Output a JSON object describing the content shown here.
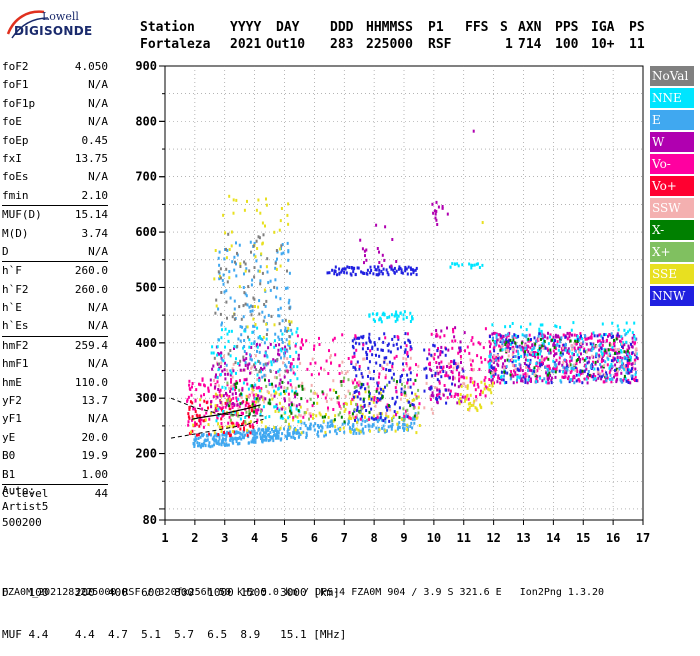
{
  "logo": {
    "line1": "Lowell",
    "line2": "DIGISONDE"
  },
  "header": {
    "labels": [
      "Station",
      "YYYY",
      "DAY",
      "DDD",
      "HHMMSS",
      "P1",
      "FFS",
      "S",
      "AXN",
      "PPS",
      "IGA",
      "PS"
    ],
    "values": [
      "Fortaleza",
      "2021",
      "Out10",
      "283",
      "225000",
      "RSF",
      "",
      "1",
      "714",
      "100",
      "10+",
      "11"
    ]
  },
  "params": [
    [
      {
        "label": "foF2",
        "value": "4.050"
      },
      {
        "label": "foF1",
        "value": "N/A"
      },
      {
        "label": "foF1p",
        "value": "N/A"
      },
      {
        "label": "foE",
        "value": "N/A"
      },
      {
        "label": "foEp",
        "value": "0.45"
      },
      {
        "label": "fxI",
        "value": "13.75"
      },
      {
        "label": "foEs",
        "value": "N/A"
      },
      {
        "label": "fmin",
        "value": "2.10"
      }
    ],
    [
      {
        "label": "MUF(D)",
        "value": "15.14"
      },
      {
        "label": "M(D)",
        "value": "3.74"
      },
      {
        "label": "D",
        "value": "N/A"
      }
    ],
    [
      {
        "label": "h`F",
        "value": "260.0"
      },
      {
        "label": "h`F2",
        "value": "260.0"
      },
      {
        "label": "h`E",
        "value": "N/A"
      },
      {
        "label": "h`Es",
        "value": "N/A"
      }
    ],
    [
      {
        "label": "hmF2",
        "value": "259.4"
      },
      {
        "label": "hmF1",
        "value": "N/A"
      },
      {
        "label": "hmE",
        "value": "110.0"
      },
      {
        "label": "yF2",
        "value": "13.7"
      },
      {
        "label": "yF1",
        "value": "N/A"
      },
      {
        "label": "yE",
        "value": "20.0"
      },
      {
        "label": "B0",
        "value": "19.9"
      },
      {
        "label": "B1",
        "value": "1.00"
      }
    ],
    [
      {
        "label": "C-level",
        "value": "44"
      }
    ]
  ],
  "auto": [
    "Auto:",
    "Artist5",
    "500200"
  ],
  "legend": [
    {
      "label": "NoVal",
      "color": "#808080"
    },
    {
      "label": "NNE",
      "color": "#00e5ff"
    },
    {
      "label": "E",
      "color": "#40a8f0"
    },
    {
      "label": "W",
      "color": "#b000b0"
    },
    {
      "label": "Vo-",
      "color": "#ff00a0"
    },
    {
      "label": "Vo+",
      "color": "#ff0030"
    },
    {
      "label": "SSW",
      "color": "#f4b0b0"
    },
    {
      "label": "X-",
      "color": "#008000"
    },
    {
      "label": "X+",
      "color": "#80c060"
    },
    {
      "label": "SSE",
      "color": "#e8e020"
    },
    {
      "label": "NNW",
      "color": "#2020e0"
    }
  ],
  "chart_data": {
    "type": "scatter",
    "title": "",
    "xlabel": "",
    "ylabel": "",
    "xlim": [
      1,
      17
    ],
    "ylim": [
      80,
      900
    ],
    "xticks": [
      1,
      2,
      3,
      4,
      5,
      6,
      7,
      8,
      9,
      10,
      11,
      12,
      13,
      14,
      15,
      16,
      17
    ],
    "yticks": [
      80,
      200,
      300,
      400,
      500,
      600,
      700,
      800,
      900
    ],
    "grid": true,
    "legend_position": "right",
    "clusters": [
      {
        "color": "#40a8f0",
        "fmin": 1.9,
        "fmax": 5.4,
        "hmin": 212,
        "hmax": 236,
        "h_slope": 5,
        "count": 260,
        "note": "E"
      },
      {
        "color": "#40a8f0",
        "fmin": 5.4,
        "fmax": 9.4,
        "hmin": 230,
        "hmax": 260,
        "h_slope": 4,
        "count": 160,
        "note": "E"
      },
      {
        "color": "#ff00a0",
        "fmin": 1.7,
        "fmax": 4.2,
        "hmin": 250,
        "hmax": 340,
        "count": 140,
        "note": "Vo-"
      },
      {
        "color": "#ff0030",
        "fmin": 1.7,
        "fmax": 4.0,
        "hmin": 235,
        "hmax": 300,
        "count": 70,
        "note": "Vo+"
      },
      {
        "color": "#e8e020",
        "fmin": 1.8,
        "fmax": 9.5,
        "hmin": 240,
        "hmax": 320,
        "count": 160,
        "note": "SSE"
      },
      {
        "color": "#f4b0b0",
        "fmin": 2.5,
        "fmax": 11.5,
        "hmin": 270,
        "hmax": 380,
        "count": 180,
        "note": "SSW"
      },
      {
        "color": "#b000b0",
        "fmin": 2.5,
        "fmax": 5.5,
        "hmin": 280,
        "hmax": 400,
        "count": 120,
        "note": "W"
      },
      {
        "color": "#00e5ff",
        "fmin": 2.5,
        "fmax": 5.5,
        "hmin": 260,
        "hmax": 430,
        "count": 110,
        "note": "NNE"
      },
      {
        "color": "#40a8f0",
        "fmin": 2.7,
        "fmax": 5.2,
        "hmin": 340,
        "hmax": 590,
        "count": 150,
        "note": "E upper"
      },
      {
        "color": "#e8e020",
        "fmin": 2.6,
        "fmax": 5.2,
        "hmin": 400,
        "hmax": 670,
        "count": 60,
        "note": "SSE upper"
      },
      {
        "color": "#808080",
        "fmin": 2.6,
        "fmax": 5.2,
        "hmin": 350,
        "hmax": 600,
        "count": 80,
        "note": "NoVal upper"
      },
      {
        "color": "#2020e0",
        "fmin": 7.2,
        "fmax": 9.3,
        "hmin": 260,
        "hmax": 420,
        "count": 170,
        "note": "NNW"
      },
      {
        "color": "#2020e0",
        "fmin": 6.4,
        "fmax": 9.4,
        "hmin": 525,
        "hmax": 540,
        "count": 90,
        "note": "NNW"
      },
      {
        "color": "#ff00a0",
        "fmin": 5.0,
        "fmax": 9.5,
        "hmin": 260,
        "hmax": 420,
        "count": 120,
        "note": "Vo-"
      },
      {
        "color": "#008000",
        "fmin": 3.0,
        "fmax": 9.5,
        "hmin": 260,
        "hmax": 340,
        "count": 60,
        "note": "X-"
      },
      {
        "color": "#80c060",
        "fmin": 3.0,
        "fmax": 9.5,
        "hmin": 260,
        "hmax": 340,
        "count": 50,
        "note": "X+"
      },
      {
        "color": "#00e5ff",
        "fmin": 7.8,
        "fmax": 9.3,
        "hmin": 440,
        "hmax": 460,
        "count": 40,
        "note": "NNE"
      },
      {
        "color": "#00e5ff",
        "fmin": 10.5,
        "fmax": 11.6,
        "hmin": 538,
        "hmax": 546,
        "count": 18,
        "note": "NNE"
      },
      {
        "color": "#b000b0",
        "fmin": 9.8,
        "fmax": 11.0,
        "hmin": 290,
        "hmax": 430,
        "count": 60,
        "note": "W"
      },
      {
        "color": "#ff00a0",
        "fmin": 9.8,
        "fmax": 11.8,
        "hmin": 300,
        "hmax": 430,
        "count": 90,
        "note": "Vo-"
      },
      {
        "color": "#2020e0",
        "fmin": 9.6,
        "fmax": 11.0,
        "hmin": 290,
        "hmax": 400,
        "count": 40,
        "note": "NNW"
      },
      {
        "color": "#b000b0",
        "fmin": 11.8,
        "fmax": 16.8,
        "hmin": 330,
        "hmax": 420,
        "count": 320,
        "note": "W"
      },
      {
        "color": "#ff00a0",
        "fmin": 11.8,
        "fmax": 16.8,
        "hmin": 330,
        "hmax": 420,
        "count": 220,
        "note": "Vo-"
      },
      {
        "color": "#00e5ff",
        "fmin": 11.8,
        "fmax": 16.8,
        "hmin": 330,
        "hmax": 440,
        "count": 160,
        "note": "NNE"
      },
      {
        "color": "#2020e0",
        "fmin": 11.8,
        "fmax": 16.8,
        "hmin": 330,
        "hmax": 420,
        "count": 120,
        "note": "NNW"
      },
      {
        "color": "#008000",
        "fmin": 11.8,
        "fmax": 16.8,
        "hmin": 340,
        "hmax": 410,
        "count": 60,
        "note": "X-"
      },
      {
        "color": "#40a8f0",
        "fmin": 11.8,
        "fmax": 16.8,
        "hmin": 330,
        "hmax": 420,
        "count": 90,
        "note": "E"
      },
      {
        "color": "#f4b0b0",
        "fmin": 11.8,
        "fmax": 16.8,
        "hmin": 340,
        "hmax": 410,
        "count": 60,
        "note": "SSW"
      },
      {
        "color": "#b000b0",
        "fmin": 9.8,
        "fmax": 10.5,
        "hmin": 615,
        "hmax": 660,
        "count": 14,
        "note": "W"
      },
      {
        "color": "#b000b0",
        "fmin": 7.5,
        "fmax": 9.2,
        "hmin": 540,
        "hmax": 620,
        "count": 18,
        "note": "W"
      },
      {
        "color": "#e8e020",
        "fmin": 10.8,
        "fmax": 12.0,
        "hmin": 280,
        "hmax": 340,
        "count": 40,
        "note": "SSE"
      }
    ],
    "singletons": [
      {
        "x": 11.3,
        "y": 785,
        "color": "#b000b0"
      },
      {
        "x": 11.6,
        "y": 620,
        "color": "#e8e020"
      }
    ],
    "trace_color": "#000000",
    "trace": [
      [
        1.9,
        262
      ],
      [
        2.3,
        266
      ],
      [
        2.8,
        270
      ],
      [
        3.3,
        276
      ],
      [
        3.8,
        282
      ],
      [
        4.2,
        288
      ]
    ],
    "trace_dash_low": [
      [
        1.2,
        228
      ],
      [
        2.5,
        240
      ],
      [
        3.7,
        252
      ],
      [
        4.3,
        262
      ]
    ],
    "trace_dash_high": [
      [
        1.2,
        300
      ],
      [
        2.0,
        283
      ],
      [
        2.8,
        272
      ],
      [
        3.7,
        268
      ],
      [
        4.4,
        268
      ]
    ]
  },
  "footer": {
    "d_label": "D",
    "d_values": [
      "100",
      "200",
      "400",
      "600",
      "800",
      "1000",
      "1500",
      "3000",
      "[km]"
    ],
    "muf_label": "MUF",
    "muf_values": [
      "4.4",
      "4.4",
      "4.7",
      "5.1",
      "5.7",
      "6.5",
      "8.9",
      "15.1",
      "[MHz]"
    ],
    "line": "FZA0M_2021283225000.RSF / 320fx256h 50 kHz 5.0 km / DPS-4 FZA0M 904 / 3.9 S 321.6 E   Ion2Png 1.3.20"
  }
}
